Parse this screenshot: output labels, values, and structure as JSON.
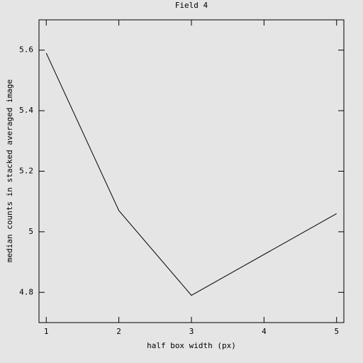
{
  "chart_data": {
    "type": "line",
    "title": "Field 4",
    "x_label": "half box width (px)",
    "y_label": "median counts in stacked averaged image",
    "x": [
      1,
      2,
      3,
      5
    ],
    "values": [
      5.59,
      5.07,
      4.79,
      5.06
    ],
    "color": "#000000",
    "xlim": [
      0.9,
      5.1
    ],
    "xticks": [
      1,
      2,
      3,
      4,
      5
    ],
    "ylim": [
      4.7,
      5.7
    ],
    "yticks": [
      4.8,
      5,
      5.2,
      5.4,
      5.6
    ]
  }
}
